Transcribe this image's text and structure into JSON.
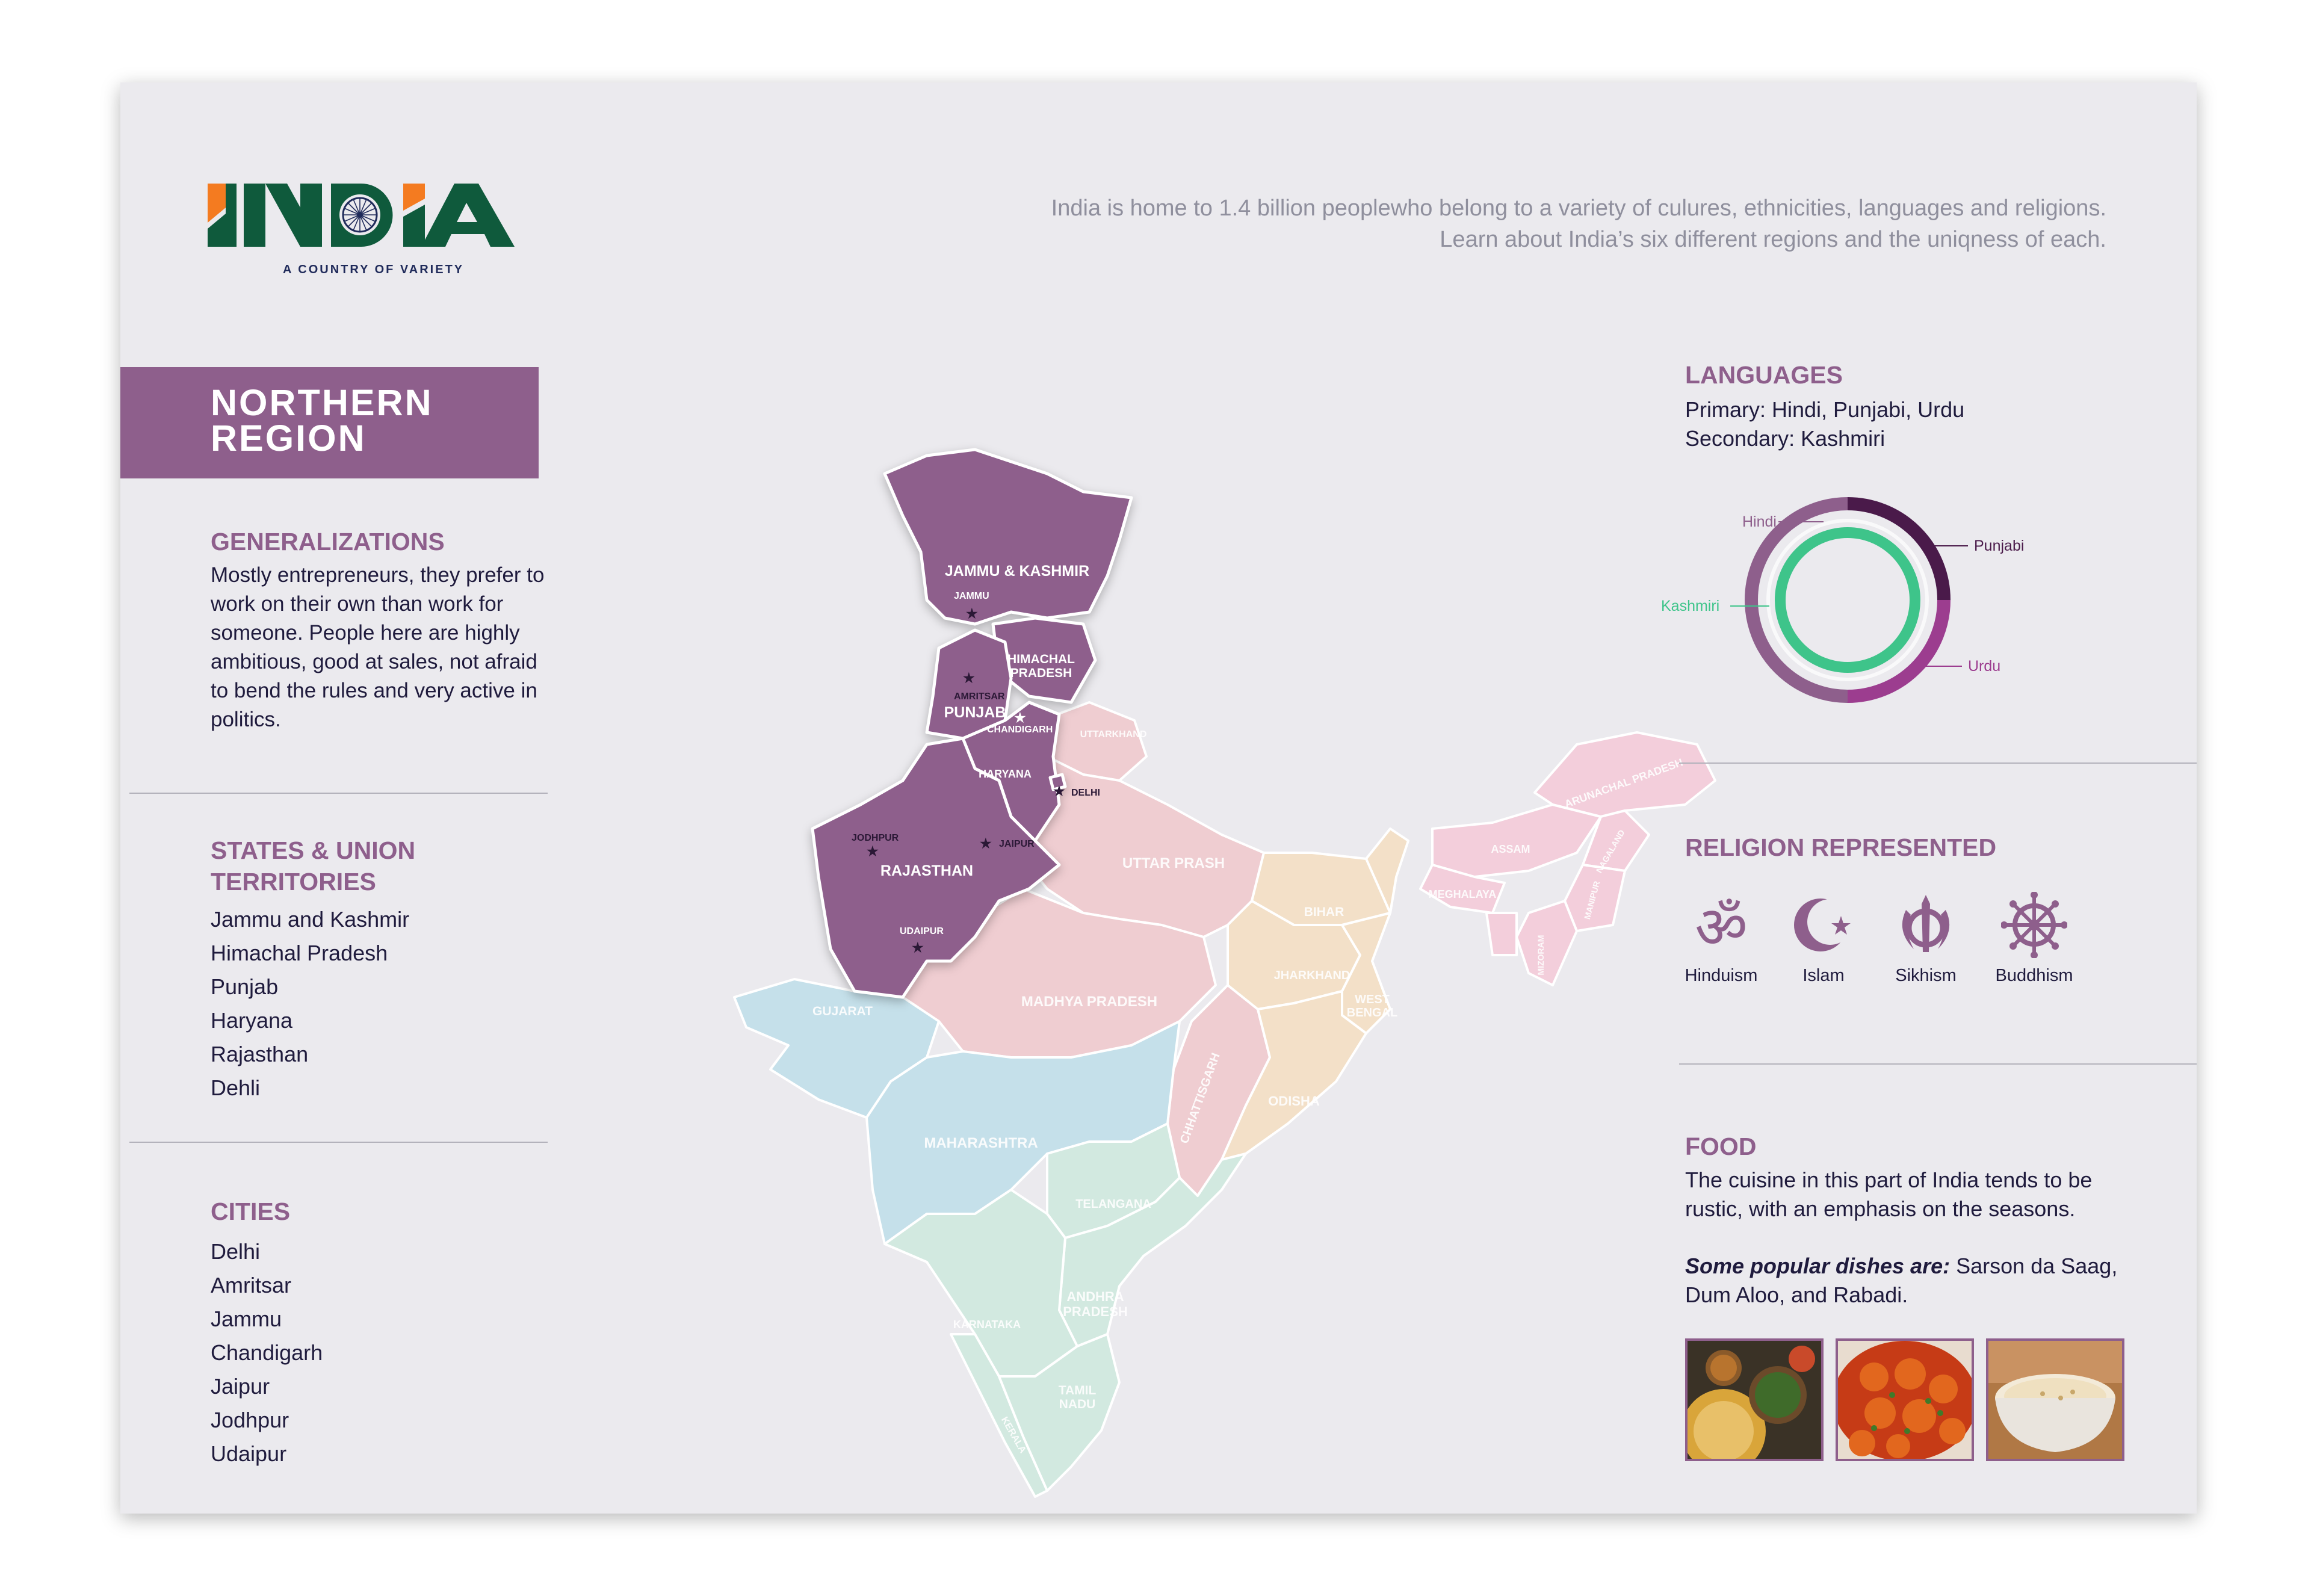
{
  "logo": {
    "wordmark": "INDIA",
    "tagline": "A COUNTRY OF VARIETY",
    "colors": {
      "saffron": "#f47b20",
      "green": "#0f5a3c",
      "navy": "#1f2a5a"
    }
  },
  "intro": {
    "line1": "India is home to 1.4 billion peoplewho belong to a variety of culures, ethnicities, languages and religions.",
    "line2": "Learn about India’s six different regions and the uniqness of each."
  },
  "region": {
    "title": "NORTHERN REGION",
    "color": "#8e5f8c"
  },
  "generalizations": {
    "heading": "GENERALIZATIONS",
    "text": "Mostly entrepreneurs, they prefer to work on their own than work for someone. People here are highly ambitious, good at sales, not afraid to bend the rules and very active in politics."
  },
  "states": {
    "heading": "STATES & UNION TERRITORIES",
    "items": [
      "Jammu and Kashmir",
      "Himachal Pradesh",
      "Punjab",
      "Haryana",
      "Rajasthan",
      "Dehli"
    ]
  },
  "cities": {
    "heading": "CITIES",
    "items": [
      "Delhi",
      "Amritsar",
      "Jammu",
      "Chandigarh",
      "Jaipur",
      "Jodhpur",
      "Udaipur"
    ]
  },
  "map": {
    "highlight_color": "#8e5f8c",
    "states": {
      "jk": "JAMMU & KASHMIR",
      "hp1": "HIMACHAL",
      "hp2": "PRADESH",
      "pb": "PUNJAB",
      "hr": "HARYANA",
      "rj": "RAJASTHAN",
      "uk": "UTTARKHAND",
      "up": "UTTAR PRASH",
      "bh": "BIHAR",
      "jh": "JHARKHAND",
      "wb1": "WEST",
      "wb2": "BENGAL",
      "mp": "MADHYA PRADESH",
      "cg": "CHHATTISGARH",
      "od": "ODISHA",
      "gj": "GUJARAT",
      "mh": "MAHARASHTRA",
      "tg": "TELANGANA",
      "ap1": "ANDHRA",
      "ap2": "PRADESH",
      "ka": "KARNATAKA",
      "tn1": "TAMIL",
      "tn2": "NADU",
      "kl": "KERALA",
      "as": "ASSAM",
      "ml": "MEGHALAYA",
      "ar": "ARUNACHAL PRADESH",
      "nl": "NAGALAND",
      "mn": "MANIPUR",
      "mz": "MIZORAM"
    },
    "cities": {
      "jammu": "JAMMU",
      "amritsar": "AMRITSAR",
      "chandigarh": "CHANDIGARH",
      "delhi": "DELHI",
      "jaipur": "JAIPUR",
      "jodhpur": "JODHPUR",
      "udaipur": "UDAIPUR"
    }
  },
  "languages": {
    "heading": "LANGUAGES",
    "primary": "Primary: Hindi, Punjabi, Urdu",
    "secondary": "Secondary: Kashmiri",
    "chart_labels": {
      "hindi": "Hindi",
      "punjabi": "Punjabi",
      "kashmiri": "Kashmiri",
      "urdu": "Urdu"
    },
    "colors": {
      "hindi": "#8e5f8c",
      "punjabi": "#4a1a4a",
      "urdu": "#9c3d8f",
      "kashmiri": "#3ec48a"
    }
  },
  "religion": {
    "heading": "RELIGION REPRESENTED",
    "items": [
      {
        "icon": "om-icon",
        "label": "Hinduism"
      },
      {
        "icon": "crescent-star-icon",
        "label": "Islam"
      },
      {
        "icon": "khanda-icon",
        "label": "Sikhism"
      },
      {
        "icon": "dharma-wheel-icon",
        "label": "Buddhism"
      }
    ]
  },
  "food": {
    "heading": "FOOD",
    "text": "The cuisine in this part of India tends to be rustic, with an emphasis on the seasons.",
    "dishes_lead": "Some popular dishes are:",
    "dishes": " Sarson da Saag, Dum Aloo, and Rabadi."
  }
}
